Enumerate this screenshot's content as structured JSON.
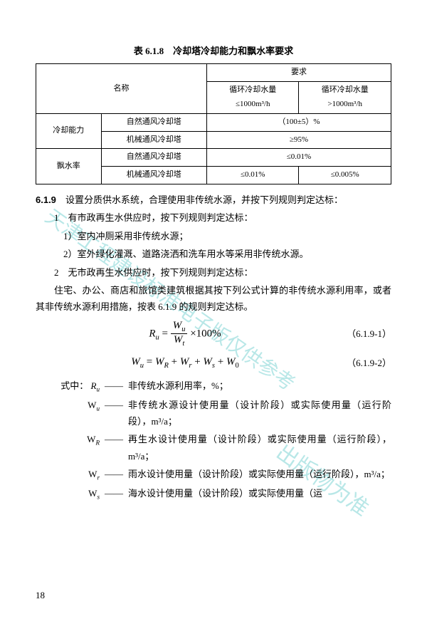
{
  "watermarks": {
    "wm1": "天津工程建设标准电子版仅供参考",
    "wm2": "出版物为准"
  },
  "table": {
    "title": "表 6.1.8　冷却塔冷却能力和飘水率要求",
    "head": {
      "name": "名称",
      "req": "要求",
      "col1_top": "循环冷却水量",
      "col1_bot": "≤1000m³/h",
      "col2_top": "循环冷却水量",
      "col2_bot": ">1000m³/h"
    },
    "rows": {
      "r1a": "冷却能力",
      "r1b": "自然通风冷却塔",
      "r1c": "（100±5）%",
      "r2b": "机械通风冷却塔",
      "r2c": "≥95%",
      "r3a": "飘水率",
      "r3b": "自然通风冷却塔",
      "r3c": "≤0.01%",
      "r4b": "机械通风冷却塔",
      "r4c1": "≤0.01%",
      "r4c2": "≤0.005%"
    }
  },
  "section": {
    "num": "6.1.9",
    "lead": "设置分质供水系统，合理使用非传统水源，并按下列规则判定达标：",
    "item1": "1　有市政再生水供应时，按下列规则判定达标：",
    "item1_1": "1）室内冲厕采用非传统水源；",
    "item1_2": "2）室外绿化灌溉、道路浇洒和洗车用水等采用非传统水源。",
    "item2": "2　无市政再生水供应时，按下列规则判定达标：",
    "item2_body": "住宅、办公、商店和旅馆类建筑根据其按下列公式计算的非传统水源利用率，或者其非传统水源利用措施，按表 6.1.9 的规则判定达标。"
  },
  "formulas": {
    "f1_num": "（6.1.9-1）",
    "f2_num": "（6.1.9-2）"
  },
  "defs": {
    "lead": "式中：",
    "d1": {
      "sym_i": "R",
      "sub": "u",
      "text": "非传统水源利用率，%；"
    },
    "d2": {
      "sym": "W",
      "sub": "u",
      "text": "非传统水源设计使用量（设计阶段）或实际使用量（运行阶段），m³/a；"
    },
    "d3": {
      "sym": "W",
      "sub": "R",
      "text": "再生水设计使用量（设计阶段）或实际使用量（运行阶段），m³/a；"
    },
    "d4": {
      "sym": "W",
      "sub": "r",
      "text": "雨水设计使用量（设计阶段）或实际使用量（运行阶段），m³/a；"
    },
    "d5": {
      "sym": "W",
      "sub": "s",
      "text": "海水设计使用量（设计阶段）或实际使用量（运"
    }
  },
  "page_num": "18"
}
